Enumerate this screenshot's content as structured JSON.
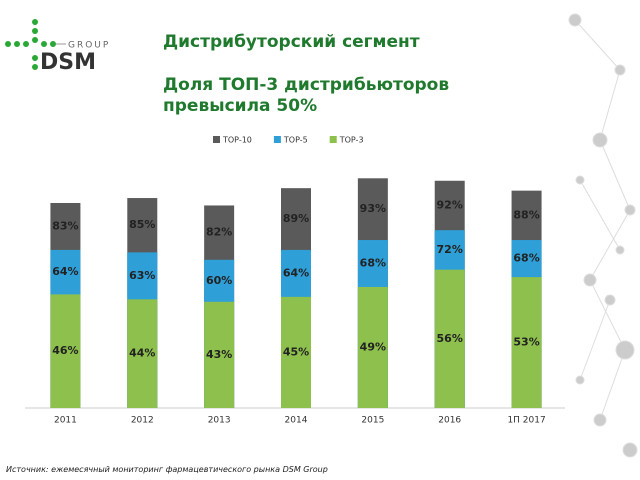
{
  "logo": {
    "group": "GROUP",
    "brand": "DSM"
  },
  "source": "Источник: ежемесячный мониторинг фармацевтического рынка DSM Group",
  "chart_data": {
    "type": "bar",
    "title": "Дистрибуторский сегмент",
    "subtitle": "Доля ТОП-3 дистрибьюторов превысила 50%",
    "categories": [
      "2011",
      "2012",
      "2013",
      "2014",
      "2015",
      "2016",
      "1П 2017"
    ],
    "series": [
      {
        "name": "TOP-10",
        "color": "#5a5a5a",
        "values": [
          83,
          85,
          82,
          89,
          93,
          92,
          88
        ],
        "value_labels": [
          "83%",
          "85%",
          "82%",
          "89%",
          "93%",
          "92%",
          "88%"
        ]
      },
      {
        "name": "TOP-5",
        "color": "#2f9fd8",
        "values": [
          64,
          63,
          60,
          64,
          68,
          72,
          68
        ],
        "value_labels": [
          "64%",
          "63%",
          "60%",
          "64%",
          "68%",
          "72%",
          "68%"
        ]
      },
      {
        "name": "TOP-3",
        "color": "#8dc04c",
        "values": [
          46,
          44,
          43,
          45,
          49,
          56,
          53
        ],
        "value_labels": [
          "46%",
          "44%",
          "43%",
          "45%",
          "49%",
          "56%",
          "53%"
        ]
      }
    ]
  }
}
